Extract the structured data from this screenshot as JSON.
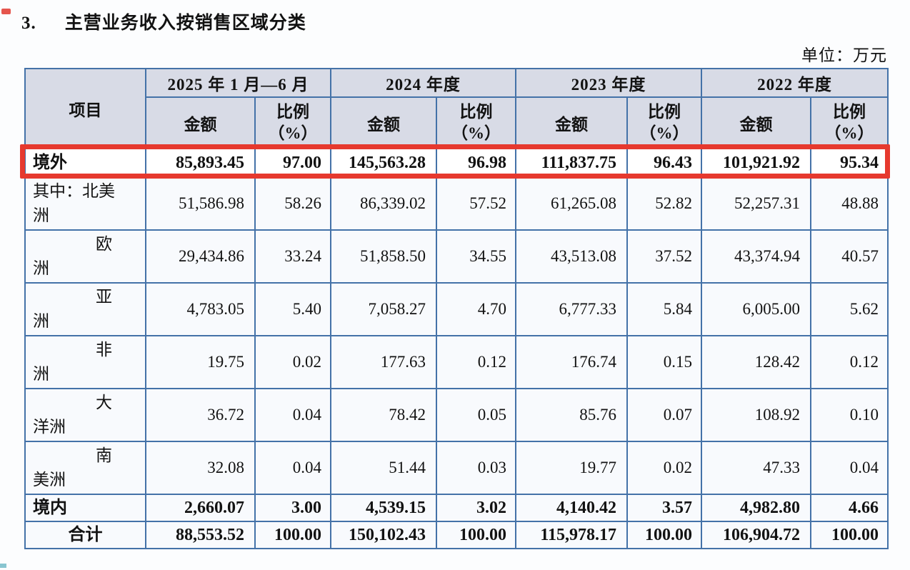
{
  "page": {
    "section_number": "3.",
    "section_title": "主营业务收入按销售区域分类",
    "unit_label": "单位：万元"
  },
  "colors": {
    "highlight_red": "#e6392e",
    "table_border_blue": "#4472a8",
    "header_bg": "#d8dbe6"
  },
  "table": {
    "corner_header": "项目",
    "column_groups": [
      {
        "period": "2025 年 1 月—6 月"
      },
      {
        "period": "2024 年度"
      },
      {
        "period": "2023 年度"
      },
      {
        "period": "2022 年度"
      }
    ],
    "sub_header_amount": "金额",
    "sub_header_ratio_line1": "比例",
    "sub_header_ratio_line2": "（%）",
    "rows": [
      {
        "id": "overseas",
        "label_lines": [
          "境外"
        ],
        "bold": true,
        "highlight": true,
        "height": "short",
        "values": [
          "85,893.45",
          "97.00",
          "145,563.28",
          "96.98",
          "111,837.75",
          "96.43",
          "101,921.92",
          "95.34"
        ]
      },
      {
        "id": "north-america",
        "label_lines": [
          "其中：北美",
          "洲"
        ],
        "bold": false,
        "height": "tall",
        "values": [
          "51,586.98",
          "58.26",
          "86,339.02",
          "57.52",
          "61,265.08",
          "52.82",
          "52,257.31",
          "48.88"
        ]
      },
      {
        "id": "europe",
        "label_lines": [
          "欧",
          "洲"
        ],
        "indent_first": true,
        "bold": false,
        "height": "tall",
        "values": [
          "29,434.86",
          "33.24",
          "51,858.50",
          "34.55",
          "43,513.08",
          "37.52",
          "43,374.94",
          "40.57"
        ]
      },
      {
        "id": "asia",
        "label_lines": [
          "亚",
          "洲"
        ],
        "indent_first": true,
        "bold": false,
        "height": "tall",
        "values": [
          "4,783.05",
          "5.40",
          "7,058.27",
          "4.70",
          "6,777.33",
          "5.84",
          "6,005.00",
          "5.62"
        ]
      },
      {
        "id": "africa",
        "label_lines": [
          "非",
          "洲"
        ],
        "indent_first": true,
        "bold": false,
        "height": "tall",
        "values": [
          "19.75",
          "0.02",
          "177.63",
          "0.12",
          "176.74",
          "0.15",
          "128.42",
          "0.12"
        ]
      },
      {
        "id": "oceania",
        "label_lines": [
          "大",
          "洋洲"
        ],
        "indent_first": true,
        "bold": false,
        "height": "tall",
        "values": [
          "36.72",
          "0.04",
          "78.42",
          "0.05",
          "85.76",
          "0.07",
          "108.92",
          "0.10"
        ]
      },
      {
        "id": "south-america",
        "label_lines": [
          "南",
          "美洲"
        ],
        "indent_first": true,
        "bold": false,
        "height": "tall",
        "values": [
          "32.08",
          "0.04",
          "51.44",
          "0.03",
          "19.77",
          "0.02",
          "47.33",
          "0.04"
        ]
      },
      {
        "id": "domestic",
        "label_lines": [
          "境内"
        ],
        "bold": true,
        "height": "bottom",
        "values": [
          "2,660.07",
          "3.00",
          "4,539.15",
          "3.02",
          "4,140.42",
          "3.57",
          "4,982.80",
          "4.66"
        ]
      },
      {
        "id": "total",
        "label_lines": [
          "合计"
        ],
        "bold": true,
        "center_label": true,
        "height": "bottom",
        "values": [
          "88,553.52",
          "100.00",
          "150,102.43",
          "100.00",
          "115,978.17",
          "100.00",
          "106,904.72",
          "100.00"
        ]
      }
    ]
  }
}
